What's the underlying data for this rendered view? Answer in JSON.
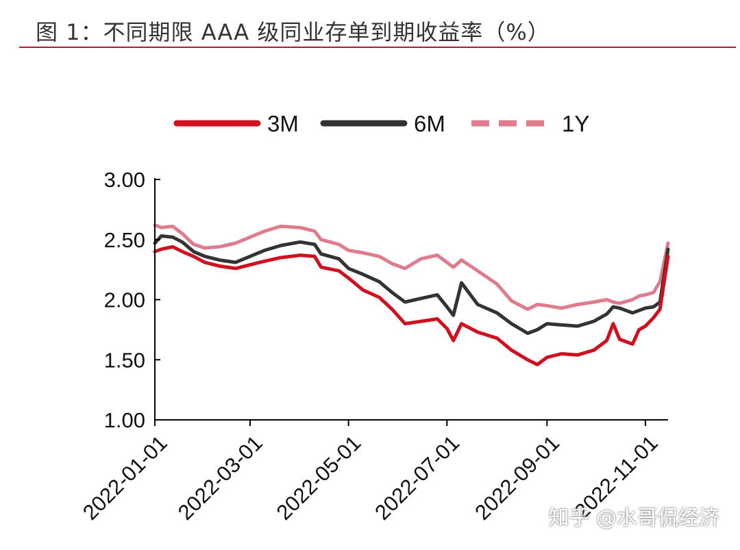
{
  "header": {
    "title": "图 1：不同期限 AAA 级同业存单到期收益率（%）"
  },
  "watermark": "知乎 @水哥侃经济",
  "chart_data": {
    "type": "line",
    "title": "图 1：不同期限 AAA 级同业存单到期收益率（%）",
    "xlabel": "",
    "ylabel": "",
    "xlim": [
      "2022-01-01",
      "2022-11-15"
    ],
    "ylim": [
      1.0,
      3.0
    ],
    "x_ticks": [
      "2022-01-01",
      "2022-03-01",
      "2022-05-01",
      "2022-07-01",
      "2022-09-01",
      "2022-11-01"
    ],
    "y_ticks": [
      "1.00",
      "1.50",
      "2.00",
      "2.50",
      "3.00"
    ],
    "grid": false,
    "legend_position": "top-center",
    "series": [
      {
        "name": "3M",
        "color": "#d0101e",
        "dash": "solid",
        "points": [
          [
            "2022-01-01",
            2.4
          ],
          [
            "2022-01-05",
            2.42
          ],
          [
            "2022-01-12",
            2.44
          ],
          [
            "2022-01-18",
            2.4
          ],
          [
            "2022-01-25",
            2.36
          ],
          [
            "2022-02-01",
            2.31
          ],
          [
            "2022-02-10",
            2.28
          ],
          [
            "2022-02-20",
            2.26
          ],
          [
            "2022-03-01",
            2.29
          ],
          [
            "2022-03-10",
            2.32
          ],
          [
            "2022-03-20",
            2.35
          ],
          [
            "2022-04-01",
            2.37
          ],
          [
            "2022-04-10",
            2.36
          ],
          [
            "2022-04-14",
            2.27
          ],
          [
            "2022-04-25",
            2.24
          ],
          [
            "2022-05-01",
            2.18
          ],
          [
            "2022-05-10",
            2.08
          ],
          [
            "2022-05-20",
            2.02
          ],
          [
            "2022-05-28",
            1.92
          ],
          [
            "2022-06-05",
            1.8
          ],
          [
            "2022-06-15",
            1.82
          ],
          [
            "2022-06-25",
            1.84
          ],
          [
            "2022-07-01",
            1.76
          ],
          [
            "2022-07-05",
            1.66
          ],
          [
            "2022-07-10",
            1.8
          ],
          [
            "2022-07-20",
            1.73
          ],
          [
            "2022-08-01",
            1.68
          ],
          [
            "2022-08-10",
            1.58
          ],
          [
            "2022-08-20",
            1.5
          ],
          [
            "2022-08-26",
            1.46
          ],
          [
            "2022-09-01",
            1.52
          ],
          [
            "2022-09-10",
            1.55
          ],
          [
            "2022-09-20",
            1.54
          ],
          [
            "2022-09-30",
            1.58
          ],
          [
            "2022-10-08",
            1.66
          ],
          [
            "2022-10-12",
            1.8
          ],
          [
            "2022-10-16",
            1.67
          ],
          [
            "2022-10-24",
            1.63
          ],
          [
            "2022-10-28",
            1.75
          ],
          [
            "2022-11-01",
            1.78
          ],
          [
            "2022-11-06",
            1.85
          ],
          [
            "2022-11-10",
            1.92
          ],
          [
            "2022-11-15",
            2.36
          ]
        ]
      },
      {
        "name": "6M",
        "color": "#333333",
        "dash": "solid",
        "points": [
          [
            "2022-01-01",
            2.47
          ],
          [
            "2022-01-05",
            2.53
          ],
          [
            "2022-01-12",
            2.52
          ],
          [
            "2022-01-18",
            2.48
          ],
          [
            "2022-01-25",
            2.4
          ],
          [
            "2022-02-01",
            2.36
          ],
          [
            "2022-02-10",
            2.33
          ],
          [
            "2022-02-20",
            2.31
          ],
          [
            "2022-03-01",
            2.36
          ],
          [
            "2022-03-10",
            2.41
          ],
          [
            "2022-03-20",
            2.45
          ],
          [
            "2022-04-01",
            2.48
          ],
          [
            "2022-04-10",
            2.46
          ],
          [
            "2022-04-14",
            2.38
          ],
          [
            "2022-04-25",
            2.34
          ],
          [
            "2022-05-01",
            2.26
          ],
          [
            "2022-05-10",
            2.21
          ],
          [
            "2022-05-20",
            2.15
          ],
          [
            "2022-05-28",
            2.06
          ],
          [
            "2022-06-05",
            1.98
          ],
          [
            "2022-06-15",
            2.01
          ],
          [
            "2022-06-25",
            2.04
          ],
          [
            "2022-07-01",
            1.94
          ],
          [
            "2022-07-05",
            1.87
          ],
          [
            "2022-07-10",
            2.14
          ],
          [
            "2022-07-20",
            1.96
          ],
          [
            "2022-08-01",
            1.89
          ],
          [
            "2022-08-10",
            1.8
          ],
          [
            "2022-08-20",
            1.72
          ],
          [
            "2022-08-26",
            1.75
          ],
          [
            "2022-09-01",
            1.8
          ],
          [
            "2022-09-10",
            1.79
          ],
          [
            "2022-09-20",
            1.78
          ],
          [
            "2022-09-30",
            1.82
          ],
          [
            "2022-10-08",
            1.88
          ],
          [
            "2022-10-12",
            1.94
          ],
          [
            "2022-10-16",
            1.93
          ],
          [
            "2022-10-24",
            1.89
          ],
          [
            "2022-10-28",
            1.91
          ],
          [
            "2022-11-01",
            1.93
          ],
          [
            "2022-11-06",
            1.94
          ],
          [
            "2022-11-10",
            1.98
          ],
          [
            "2022-11-15",
            2.42
          ]
        ]
      },
      {
        "name": "1Y",
        "color": "#e07b8d",
        "dash": "dashed",
        "points": [
          [
            "2022-01-01",
            2.62
          ],
          [
            "2022-01-05",
            2.6
          ],
          [
            "2022-01-12",
            2.61
          ],
          [
            "2022-01-18",
            2.55
          ],
          [
            "2022-01-25",
            2.46
          ],
          [
            "2022-02-01",
            2.43
          ],
          [
            "2022-02-10",
            2.44
          ],
          [
            "2022-02-20",
            2.47
          ],
          [
            "2022-03-01",
            2.52
          ],
          [
            "2022-03-10",
            2.57
          ],
          [
            "2022-03-20",
            2.61
          ],
          [
            "2022-04-01",
            2.6
          ],
          [
            "2022-04-10",
            2.57
          ],
          [
            "2022-04-14",
            2.5
          ],
          [
            "2022-04-25",
            2.46
          ],
          [
            "2022-05-01",
            2.41
          ],
          [
            "2022-05-10",
            2.39
          ],
          [
            "2022-05-20",
            2.36
          ],
          [
            "2022-05-28",
            2.3
          ],
          [
            "2022-06-05",
            2.26
          ],
          [
            "2022-06-15",
            2.34
          ],
          [
            "2022-06-25",
            2.37
          ],
          [
            "2022-07-01",
            2.31
          ],
          [
            "2022-07-05",
            2.27
          ],
          [
            "2022-07-10",
            2.33
          ],
          [
            "2022-07-20",
            2.24
          ],
          [
            "2022-08-01",
            2.13
          ],
          [
            "2022-08-10",
            1.99
          ],
          [
            "2022-08-20",
            1.92
          ],
          [
            "2022-08-26",
            1.96
          ],
          [
            "2022-09-01",
            1.95
          ],
          [
            "2022-09-10",
            1.93
          ],
          [
            "2022-09-20",
            1.96
          ],
          [
            "2022-09-30",
            1.98
          ],
          [
            "2022-10-08",
            2.0
          ],
          [
            "2022-10-12",
            1.98
          ],
          [
            "2022-10-16",
            1.97
          ],
          [
            "2022-10-24",
            2.0
          ],
          [
            "2022-10-28",
            2.03
          ],
          [
            "2022-11-01",
            2.04
          ],
          [
            "2022-11-06",
            2.06
          ],
          [
            "2022-11-10",
            2.15
          ],
          [
            "2022-11-15",
            2.47
          ]
        ]
      }
    ]
  }
}
